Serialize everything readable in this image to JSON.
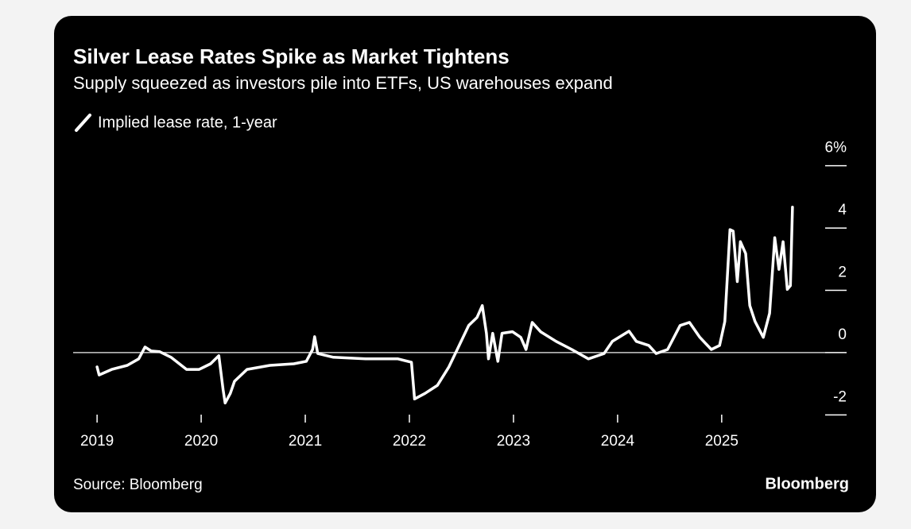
{
  "chart_data": {
    "type": "line",
    "title": "Silver Lease Rates Spike as Market Tightens",
    "subtitle": "Supply squeezed as investors pile into ETFs, US warehouses expand",
    "source": "Source: Bloomberg",
    "brand": "Bloomberg",
    "xlim": [
      2018.77,
      2026.2
    ],
    "xticks": [
      2019,
      2020,
      2021,
      2022,
      2023,
      2024,
      2025
    ],
    "ylim": [
      -2.4,
      6.4
    ],
    "yticks": [
      {
        "value": 6,
        "label": "6%"
      },
      4,
      2,
      0,
      -2
    ],
    "grid": false,
    "series": [
      {
        "name": "Implied lease rate, 1-year",
        "color": "#ffffff",
        "x": [
          2019.0,
          2019.02,
          2019.14,
          2019.29,
          2019.4,
          2019.46,
          2019.52,
          2019.6,
          2019.71,
          2019.86,
          2019.98,
          2020.09,
          2020.17,
          2020.21,
          2020.23,
          2020.28,
          2020.32,
          2020.44,
          2020.66,
          2020.89,
          2021.01,
          2021.07,
          2021.09,
          2021.12,
          2021.27,
          2021.58,
          2021.89,
          2022.02,
          2022.05,
          2022.15,
          2022.27,
          2022.38,
          2022.46,
          2022.57,
          2022.65,
          2022.7,
          2022.74,
          2022.76,
          2022.8,
          2022.85,
          2022.89,
          2022.99,
          2023.07,
          2023.12,
          2023.18,
          2023.26,
          2023.41,
          2023.56,
          2023.72,
          2023.87,
          2023.95,
          2024.11,
          2024.18,
          2024.3,
          2024.37,
          2024.48,
          2024.6,
          2024.69,
          2024.79,
          2024.9,
          2024.98,
          2025.03,
          2025.08,
          2025.11,
          2025.15,
          2025.18,
          2025.23,
          2025.27,
          2025.32,
          2025.4,
          2025.46,
          2025.51,
          2025.55,
          2025.59,
          2025.63,
          2025.66,
          2025.68
        ],
        "values": [
          -0.46,
          -0.72,
          -0.54,
          -0.41,
          -0.2,
          0.18,
          0.05,
          0.03,
          -0.15,
          -0.54,
          -0.54,
          -0.36,
          -0.1,
          -1.18,
          -1.62,
          -1.31,
          -0.92,
          -0.54,
          -0.41,
          -0.36,
          -0.28,
          0.1,
          0.51,
          -0.03,
          -0.15,
          -0.2,
          -0.2,
          -0.31,
          -1.49,
          -1.31,
          -1.05,
          -0.46,
          0.1,
          0.87,
          1.13,
          1.51,
          0.62,
          -0.2,
          0.62,
          -0.28,
          0.62,
          0.67,
          0.49,
          0.1,
          0.97,
          0.67,
          0.36,
          0.1,
          -0.2,
          -0.03,
          0.36,
          0.69,
          0.36,
          0.23,
          -0.03,
          0.1,
          0.87,
          0.97,
          0.49,
          0.1,
          0.23,
          1.0,
          3.95,
          3.9,
          2.28,
          3.56,
          3.18,
          1.51,
          1.0,
          0.49,
          1.26,
          3.69,
          2.67,
          3.56,
          2.03,
          2.15,
          4.67
        ]
      }
    ]
  }
}
